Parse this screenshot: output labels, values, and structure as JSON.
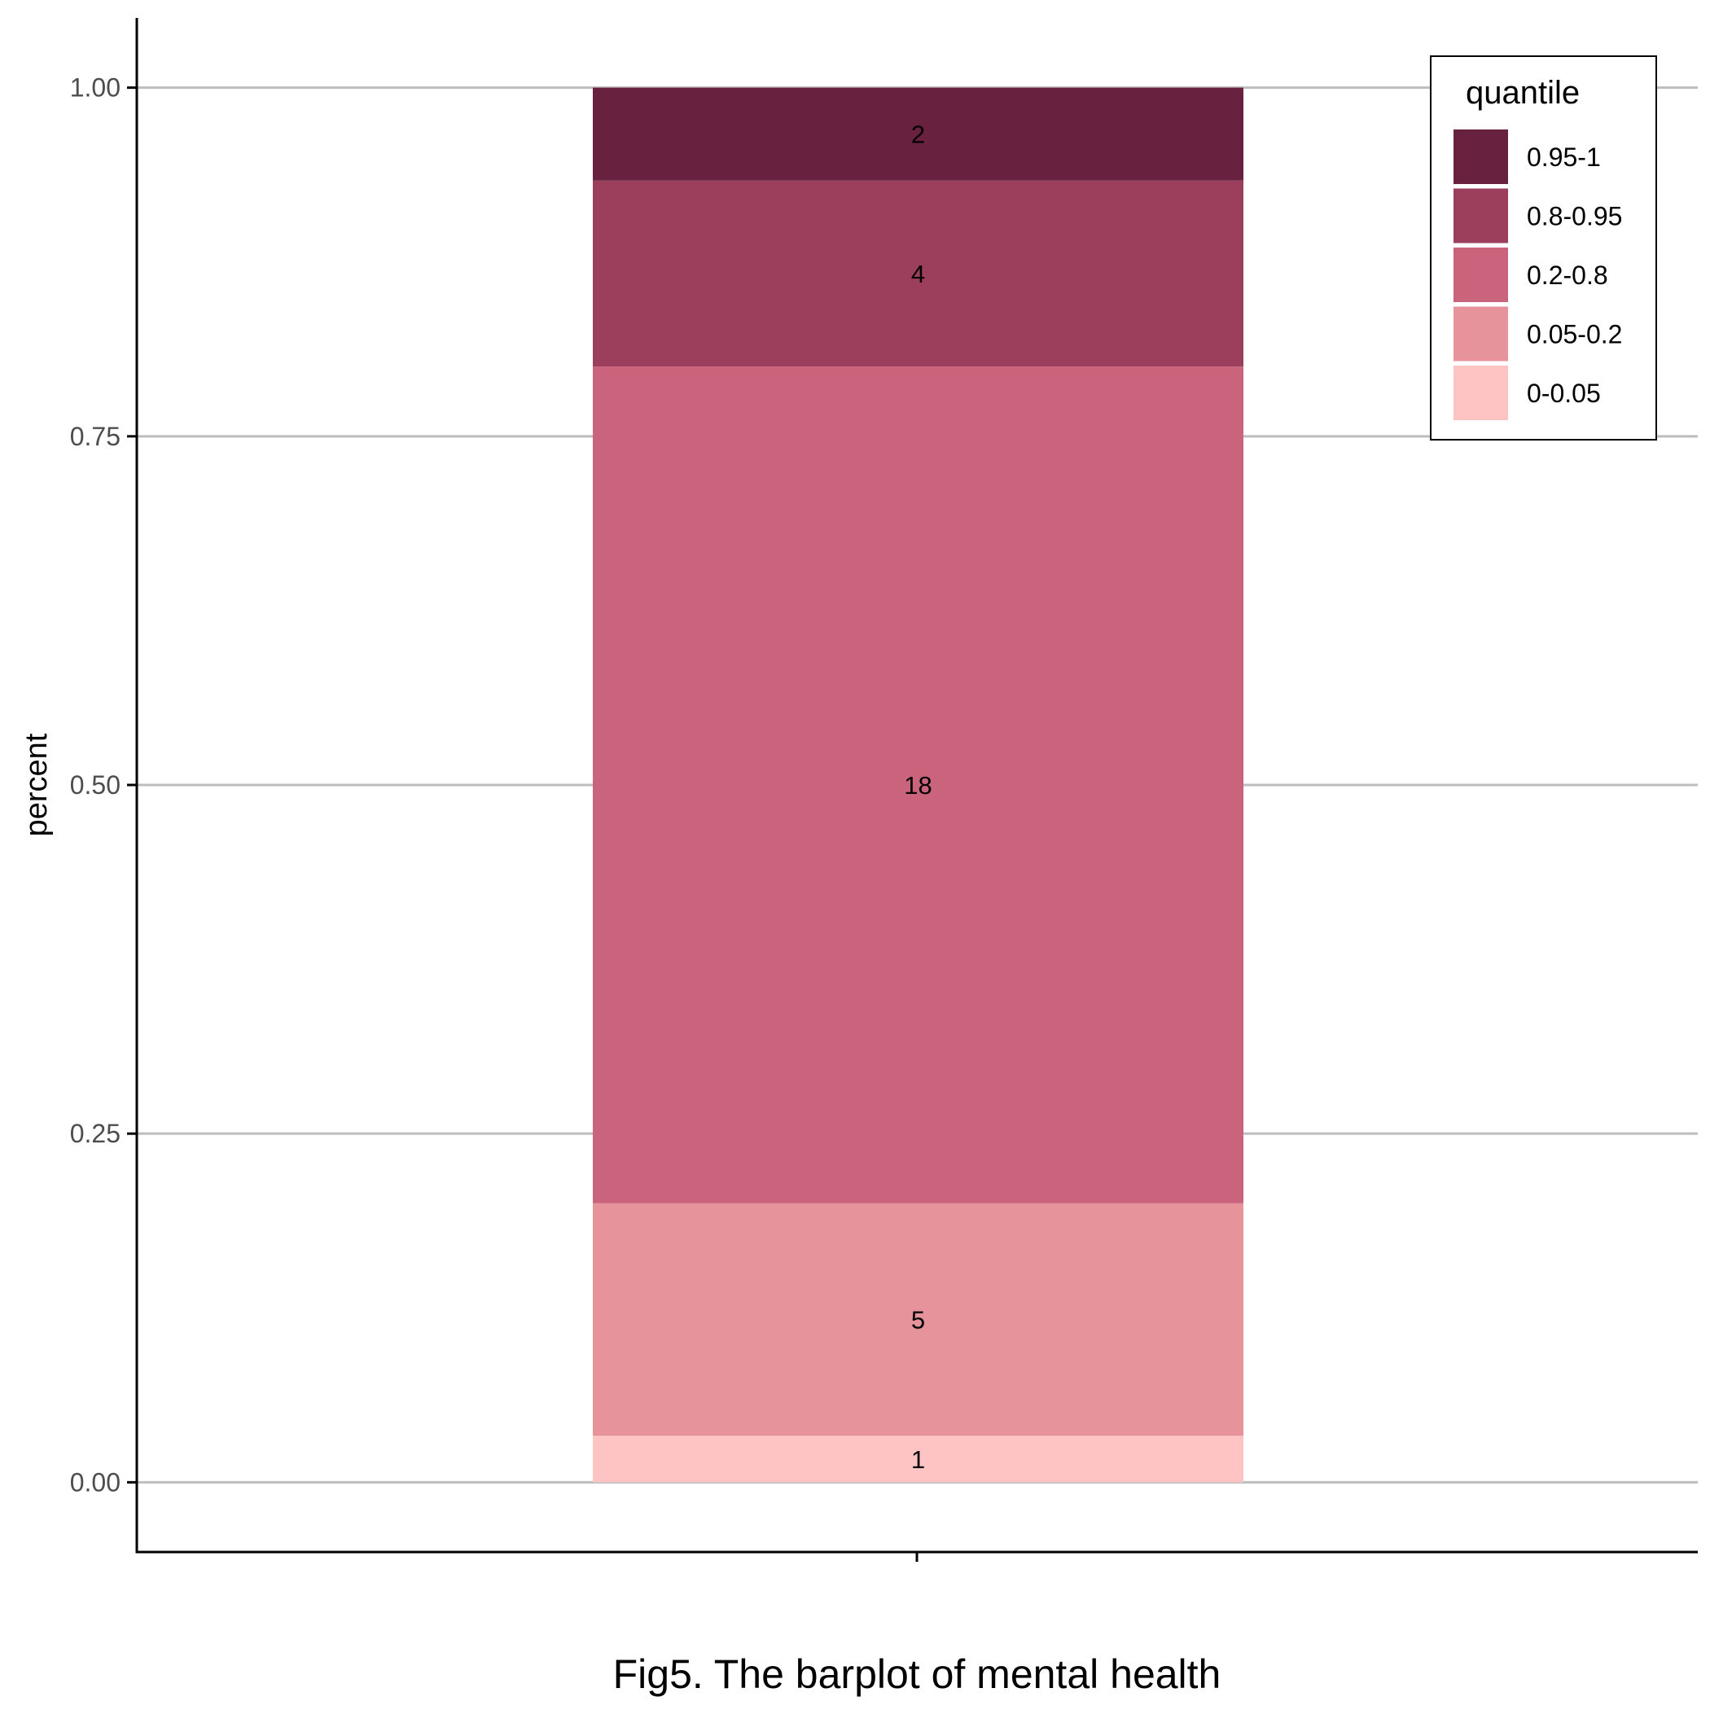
{
  "chart_data": {
    "type": "bar",
    "stacked": true,
    "position": "fill",
    "categories": [
      ""
    ],
    "ylabel": "percent",
    "xlabel": "Fig5. The barplot of mental health",
    "ylim": [
      -0.05,
      1.05
    ],
    "yticks": [
      {
        "value": 0.0,
        "label": "0.00"
      },
      {
        "value": 0.25,
        "label": "0.25"
      },
      {
        "value": 0.5,
        "label": "0.50"
      },
      {
        "value": 0.75,
        "label": "0.75"
      },
      {
        "value": 1.0,
        "label": "1.00"
      }
    ],
    "grid": "horizontal-major",
    "legend": {
      "title": "quantile",
      "placement": "top-right",
      "entries": [
        "0.95-1",
        "0.8-0.95",
        "0.2-0.8",
        "0.05-0.2",
        "0-0.05"
      ]
    },
    "series": [
      {
        "name": "0-0.05",
        "count": 1,
        "label": "1",
        "color": "#fec4c4"
      },
      {
        "name": "0.05-0.2",
        "count": 5,
        "label": "5",
        "color": "#e6939b"
      },
      {
        "name": "0.2-0.8",
        "count": 18,
        "label": "18",
        "color": "#c9647c"
      },
      {
        "name": "0.8-0.95",
        "count": 4,
        "label": "4",
        "color": "#9b3f5d"
      },
      {
        "name": "0.95-1",
        "count": 2,
        "label": "2",
        "color": "#68223f"
      }
    ]
  }
}
